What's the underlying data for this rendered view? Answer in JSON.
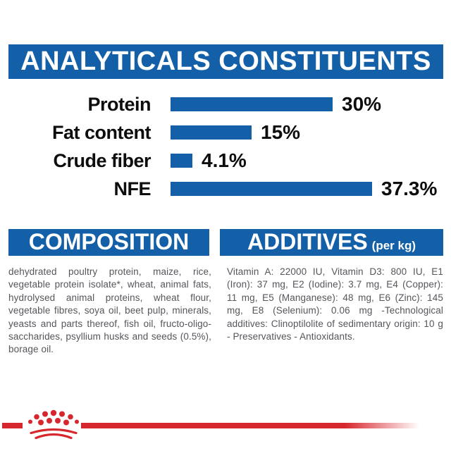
{
  "colors": {
    "brand_blue": "#1460a8",
    "brand_red": "#d7272e",
    "heading_text": "#ffffff",
    "chart_text": "#0d0d0d",
    "body_text": "#55565b"
  },
  "analyticals": {
    "title": "ANALYTICALS CONSTITUENTS"
  },
  "chart_data": {
    "type": "bar",
    "orientation": "horizontal",
    "title": "ANALYTICALS CONSTITUENTS",
    "categories": [
      "Protein",
      "Fat content",
      "Crude fiber",
      "NFE"
    ],
    "values": [
      30,
      15,
      4.1,
      37.3
    ],
    "value_labels": [
      "30%",
      "15%",
      "4.1%",
      "37.3%"
    ],
    "unit": "%",
    "xlim": [
      0,
      40
    ],
    "grid": "off",
    "legend": "none",
    "bar_color": "#1460a8"
  },
  "composition": {
    "title": "COMPOSITION",
    "body": "dehydrated poultry protein, maize, rice, vegetable protein isolate*, wheat, animal fats, hydrolysed animal proteins, wheat flour, vegetable fibres, soya oil, beet pulp, minerals, yeasts and parts thereof, fish oil, fructo-oligo-saccharides, psyllium husks and seeds (0.5%), borage oil."
  },
  "additives": {
    "title": "ADDITIVES",
    "title_suffix": "(per kg)",
    "body": "Vitamin A: 22000 IU, Vitamin D3: 800 IU, E1 (Iron): 37 mg, E2 (Iodine): 3.7 mg, E4 (Copper): 11 mg, E5 (Manganese): 48 mg, E6 (Zinc): 145 mg, E8 (Selenium): 0.06 mg -Technological additives: Clinoptilolite of sedimentary origin: 10 g - Preservatives - Antioxidants."
  },
  "footer": {
    "logo": "royal-canin-crown"
  }
}
